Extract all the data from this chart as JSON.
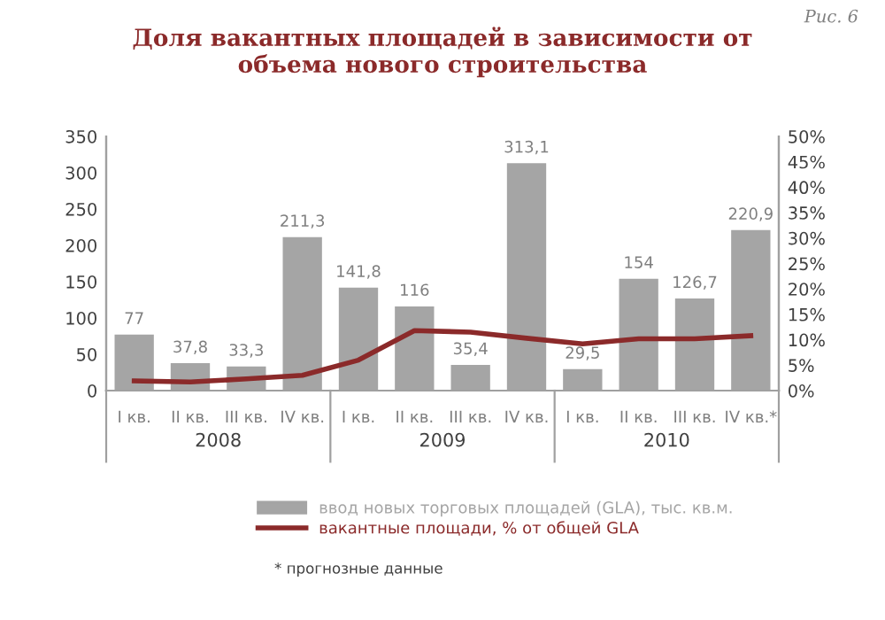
{
  "chart_data": {
    "type": "bar",
    "title": "Доля вакантных площадей в зависимости от\nобъема нового строительства",
    "categories": [
      "I кв.",
      "II кв.",
      "III кв.",
      "IV кв.",
      "I кв.",
      "II кв.",
      "III кв.",
      "IV кв.",
      "I кв.",
      "II кв.",
      "III кв.",
      "IV кв.*"
    ],
    "series": [
      {
        "name": "ввод новых торговых площадей (GLA), тыс. кв.м.",
        "color": "#a5a5a5",
        "values": [
          77,
          37.8,
          33.3,
          211.3,
          141.8,
          116,
          35.4,
          313.1,
          29.5,
          154,
          126.7,
          220.9
        ],
        "value_labels": [
          "77",
          "37,8",
          "33,3",
          "211,3",
          "141,8",
          "116",
          "35,4",
          "313,1",
          "29,5",
          "154",
          "126,7",
          "220,9"
        ]
      },
      {
        "name": "вакантные площади, % от общей GLA",
        "type": "line",
        "axis": "y2",
        "color": "#8b2a2a",
        "values": [
          1.9,
          1.7,
          2.3,
          3,
          6,
          11.8,
          11.5,
          10.3,
          9.2,
          10.2,
          10.2,
          10.8
        ]
      }
    ],
    "ylim": [
      0,
      350
    ],
    "yticks": [
      0,
      50,
      100,
      150,
      200,
      250,
      300,
      350
    ],
    "y2lim": [
      0,
      50
    ],
    "y2ticks": [
      {
        "value": 0,
        "label": "0%"
      },
      {
        "value": 5,
        "label": "5%"
      },
      {
        "value": 10,
        "label": "10%"
      },
      {
        "value": 15,
        "label": "15%"
      },
      {
        "value": 20,
        "label": "20%"
      },
      {
        "value": 25,
        "label": "25%"
      },
      {
        "value": 30,
        "label": "30%"
      },
      {
        "value": 35,
        "label": "35%"
      },
      {
        "value": 40,
        "label": "40%"
      },
      {
        "value": 45,
        "label": "45%"
      },
      {
        "value": 50,
        "label": "50%"
      }
    ],
    "grid": false,
    "legend": "bottom",
    "marker": "none",
    "line_style": "solid",
    "annotations": [
      "2008",
      "2009",
      "2010",
      "* прогнозные данные",
      "Рис. 6"
    ]
  }
}
